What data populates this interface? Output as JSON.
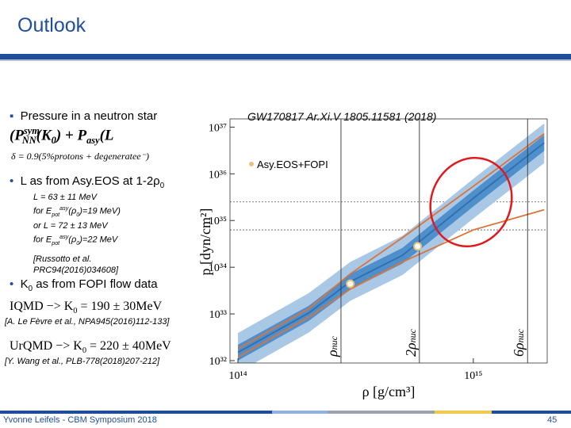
{
  "header": {
    "title": "Outlook"
  },
  "left": {
    "b1": "Pressure in a neutron star",
    "f1": [
      "(P",
      "sym",
      "NN",
      "(K",
      "0",
      ") + P",
      "asy",
      "(L"
    ],
    "f2": "δ = 0.9(5%protons + degeneratee⁻)",
    "b2": [
      "L  as from Asy.EOS at 1-2ρ",
      "0"
    ],
    "l1": "L = 63 ± 11 MeV",
    "l2": [
      "for E",
      "pot",
      "asy",
      "(ρ",
      "0",
      ")=19 MeV)"
    ],
    "l3": "or L = 72 ± 13 MeV",
    "l4": [
      "for E",
      "pot",
      "asy",
      "(ρ",
      "0",
      ")=22 MeV"
    ],
    "r1": "[Russotto et al.",
    "r2": "PRC94(2016)034608]",
    "b3": [
      "K",
      "0",
      " as from FOPI flow data"
    ],
    "f3": [
      "IQMD −> K",
      "0",
      " = 190 ± 30MeV"
    ],
    "c3": "[A. Le Fèvre et al., NPA945(2016)112-133]",
    "f4": [
      "UrQMD −> K",
      "0",
      " = 220 ± 40MeV"
    ],
    "c4": "[Y. Wang et al., PLB-778(2018)207-212]"
  },
  "chart_data": {
    "type": "line",
    "title": "GW170817 Ar.Xi.V 1805.11581 (2018)",
    "x_label": "ρ [g/cm³]",
    "y_label": "p [dyn/cm²]",
    "xscale": "log",
    "yscale": "log",
    "xlim": [
      92500000000000.0,
      2060000000000000.0
    ],
    "ylim": [
      8.9e+31,
      1.5e+37
    ],
    "xticks": [
      {
        "value": 100000000000000.0,
        "label": "10¹⁴"
      },
      {
        "value": 1000000000000000.0,
        "label": "10¹⁵"
      }
    ],
    "yticks": [
      {
        "value": 1e+32,
        "label": "10³²"
      },
      {
        "value": 1e+33,
        "label": "10³³"
      },
      {
        "value": 1e+34,
        "label": "10³⁴"
      },
      {
        "value": 1e+35,
        "label": "10³⁵"
      },
      {
        "value": 1e+36,
        "label": "10³⁶"
      },
      {
        "value": 1e+37,
        "label": "10³⁷"
      }
    ],
    "x": [
      100000000000000.0,
      200000000000000.0,
      300000000000000.0,
      500000000000000.0,
      1000000000000000.0,
      2000000000000000.0
    ],
    "series": [
      {
        "type": "area",
        "color": "#a9c8e6",
        "values": [
          3.9e+32,
          2.8e+33,
          1.3e+34,
          4.7e+34,
          7.8e+35,
          1.2e+37
        ],
        "lower": [
          5.6e+31,
          4e+32,
          1.9e+33,
          6.8e+33,
          1.1e+35,
          1.7e+36
        ]
      },
      {
        "type": "area",
        "color": "#4f8fcc",
        "values": [
          2.2e+32,
          1.5e+33,
          7.2e+33,
          2.6e+34,
          4.4e+35,
          6.8e+36
        ],
        "lower": [
          1e+32,
          7.1e+32,
          3.3e+33,
          1.2e+34,
          2e+35,
          3.1e+36
        ]
      },
      {
        "type": "line",
        "color": "#2f6fae",
        "values": [
          1.5e+32,
          1.05e+33,
          4.9e+33,
          1.8e+34,
          3e+35,
          4.6e+36
        ]
      },
      {
        "type": "line",
        "color": "#d9743a",
        "values": [
          1.8e+32,
          1.3e+33,
          7.2e+33,
          4.3e+34,
          5.4e+35,
          7.2e+36
        ]
      },
      {
        "type": "line",
        "color": "#d9743a",
        "values": [
          1.2e+32,
          8.5e+32,
          3.4e+33,
          1.3e+34,
          6.3e+34,
          1.7e+35
        ]
      }
    ],
    "points": {
      "name": "Asy.EOS+FOPI",
      "color": "#e8c27a",
      "x": [
        300000000000000.0,
        580000000000000.0
      ],
      "values": [
        4.4e+33,
        2.8e+34
      ]
    },
    "vlines": [
      {
        "value": 274000000000000.0,
        "label": [
          "ρ",
          "nuc"
        ]
      },
      {
        "value": 590000000000000.0,
        "label": [
          "2ρ",
          "nuc"
        ]
      },
      {
        "value": 1700000000000000.0,
        "label": [
          "6ρ",
          "nuc"
        ]
      }
    ],
    "hlines": [
      2.5e+35,
      6.3e+34
    ],
    "grid": false
  },
  "footer": {
    "author": "Yvonne Leifels - CBM Symposium 2018",
    "page": "45"
  }
}
